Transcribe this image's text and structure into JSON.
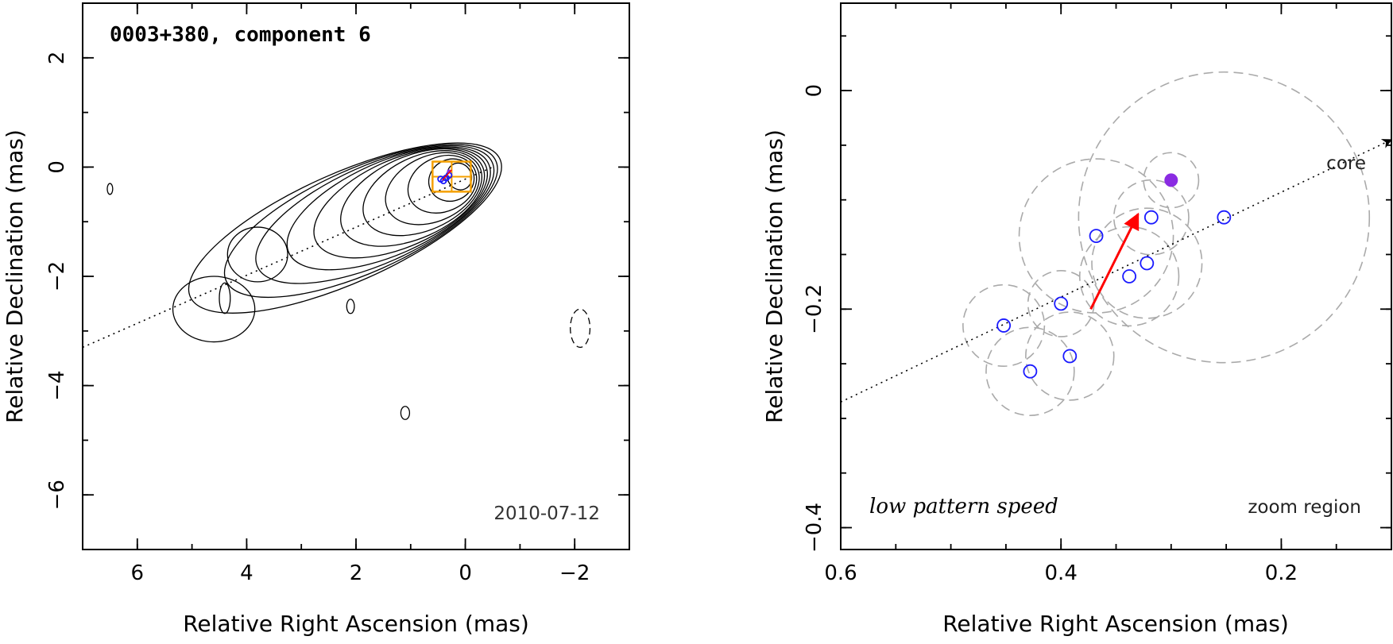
{
  "chart_data": [
    {
      "type": "contour",
      "title": "0003+380, component 6",
      "date": "2010-07-12",
      "xlabel": "Relative Right Ascension (mas)",
      "ylabel": "Relative Declination (mas)",
      "xlim": [
        7,
        -3
      ],
      "ylim": [
        -7,
        3
      ],
      "xticks": [
        6,
        4,
        2,
        0,
        -2
      ],
      "yticks": [
        2,
        0,
        -2,
        -4,
        -6
      ],
      "xtick_labels": [
        "6",
        "4",
        "2",
        "0",
        "−2"
      ],
      "ytick_labels": [
        "2",
        "0",
        "−2",
        "−4",
        "−6"
      ],
      "jet_axis_line": [
        [
          7.0,
          -3.3
        ],
        [
          -0.5,
          0.0
        ]
      ],
      "contour_levels": [
        {
          "rx": 3.1,
          "ry": 1.0
        },
        {
          "rx": 2.7,
          "ry": 0.95
        },
        {
          "rx": 2.35,
          "ry": 0.9
        },
        {
          "rx": 2.0,
          "ry": 0.85
        },
        {
          "rx": 1.7,
          "ry": 0.8
        },
        {
          "rx": 1.4,
          "ry": 0.75
        },
        {
          "rx": 1.15,
          "ry": 0.68
        },
        {
          "rx": 0.9,
          "ry": 0.6
        },
        {
          "rx": 0.65,
          "ry": 0.5
        },
        {
          "rx": 0.42,
          "ry": 0.38
        },
        {
          "rx": 0.22,
          "ry": 0.25
        }
      ],
      "zoom_box": {
        "x": [
          0.6,
          -0.1
        ],
        "y": [
          -0.45,
          0.1
        ]
      }
    },
    {
      "type": "scatter",
      "xlabel": "Relative Right Ascension (mas)",
      "ylabel": "Relative Declination (mas)",
      "xlim": [
        0.6,
        0.1
      ],
      "ylim": [
        -0.42,
        0.08
      ],
      "xticks": [
        0.6,
        0.4,
        0.2
      ],
      "yticks": [
        0,
        -0.2,
        -0.4
      ],
      "xtick_labels": [
        "0.6",
        "0.4",
        "0.2"
      ],
      "ytick_labels": [
        "0",
        "−0.2",
        "−0.4"
      ],
      "annotation_bottom_left": "low pattern speed",
      "annotation_bottom_right": "zoom region",
      "core_label": "core",
      "jet_axis_line": [
        [
          0.6,
          -0.285
        ],
        [
          0.1,
          -0.045
        ]
      ],
      "points": [
        {
          "x": 0.452,
          "y": -0.215,
          "r": 0.037
        },
        {
          "x": 0.428,
          "y": -0.257,
          "r": 0.04
        },
        {
          "x": 0.4,
          "y": -0.195,
          "r": 0.03
        },
        {
          "x": 0.392,
          "y": -0.243,
          "r": 0.04
        },
        {
          "x": 0.368,
          "y": -0.133,
          "r": 0.07
        },
        {
          "x": 0.338,
          "y": -0.17,
          "r": 0.045
        },
        {
          "x": 0.322,
          "y": -0.158,
          "r": 0.05
        },
        {
          "x": 0.318,
          "y": -0.116,
          "r": 0.034
        },
        {
          "x": 0.252,
          "y": -0.116,
          "r": 0.132
        }
      ],
      "current_point": {
        "x": 0.3,
        "y": -0.082,
        "r": 0.015
      },
      "velocity_arrow": {
        "from": [
          0.373,
          -0.2
        ],
        "to": [
          0.33,
          -0.113
        ]
      },
      "colors": {
        "points": "#1a1aff",
        "current": "#8a2be2",
        "arrow": "#ff0000",
        "error_circles": "#aaaaaa",
        "zoom_box": "#f5a000"
      }
    }
  ]
}
